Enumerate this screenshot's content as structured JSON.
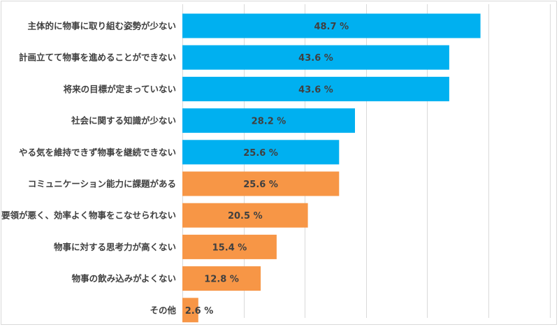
{
  "chart_data": {
    "type": "bar",
    "orientation": "horizontal",
    "categories": [
      "主体的に物事に取り組む姿勢が少ない",
      "計画立てて物事を進めることができない",
      "将来の目標が定まっていない",
      "社会に関する知識が少ない",
      "やる気を維持できず物事を継続できない",
      "コミュニケーション能力に課題がある",
      "要領が悪く、効率よく物事をこなせられない",
      "物事に対する思考力が高くない",
      "物事の飲み込みがよくない",
      "その他"
    ],
    "values": [
      48.7,
      43.6,
      43.6,
      28.2,
      25.6,
      25.6,
      20.5,
      15.4,
      12.8,
      2.6
    ],
    "value_labels": [
      "48.7 %",
      "43.6 %",
      "43.6 %",
      "28.2 %",
      "25.6 %",
      "25.6 %",
      "20.5 %",
      "15.4 %",
      "12.8 %",
      "2.6 %"
    ],
    "bar_colors": [
      "#00B0F0",
      "#00B0F0",
      "#00B0F0",
      "#00B0F0",
      "#00B0F0",
      "#F79646",
      "#F79646",
      "#F79646",
      "#F79646",
      "#F79646"
    ],
    "xlim": [
      0,
      60
    ],
    "x_gridlines": [
      0,
      10,
      20,
      30,
      40,
      50,
      60
    ],
    "grid": true,
    "legend": "none"
  }
}
